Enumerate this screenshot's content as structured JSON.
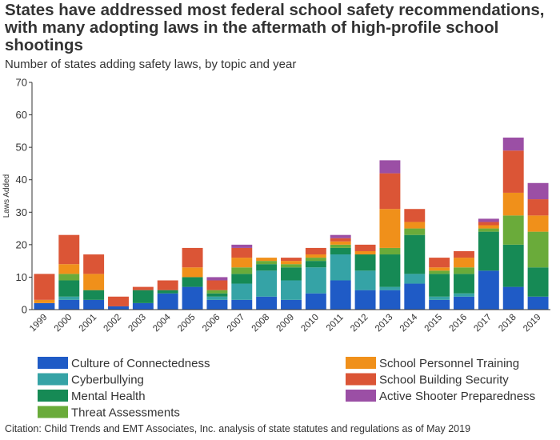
{
  "chart_data": {
    "type": "bar",
    "stacked": true,
    "title": "States have addressed most federal school safety recommendations, with many adopting laws in the aftermath of high-profile school shootings",
    "subtitle": "Number of states adding safety laws, by topic and year",
    "ylabel": "Laws Added",
    "xlabel": "",
    "ylim": [
      0,
      70
    ],
    "yticks": [
      0,
      10,
      20,
      30,
      40,
      50,
      60,
      70
    ],
    "grid": false,
    "legend_position": "bottom",
    "categories": [
      "1999",
      "2000",
      "2001",
      "2002",
      "2003",
      "2004",
      "2005",
      "2006",
      "2007",
      "2008",
      "2009",
      "2010",
      "2011",
      "2012",
      "2013",
      "2014",
      "2015",
      "2016",
      "2017",
      "2018",
      "2019"
    ],
    "series": [
      {
        "name": "Culture of Connectedness",
        "color": "#1f5bc6",
        "values": [
          2,
          3,
          3,
          1,
          2,
          5,
          7,
          3,
          3,
          4,
          3,
          5,
          9,
          6,
          6,
          8,
          3,
          4,
          12,
          7,
          4
        ]
      },
      {
        "name": "Cyberbullying",
        "color": "#35a3a6",
        "values": [
          0,
          1,
          0,
          0,
          0,
          0,
          0,
          1,
          5,
          8,
          6,
          8,
          8,
          6,
          1,
          3,
          1,
          1,
          0,
          0,
          0
        ]
      },
      {
        "name": "Mental Health",
        "color": "#168a55",
        "values": [
          0,
          5,
          3,
          0,
          4,
          1,
          3,
          1,
          3,
          2,
          4,
          2,
          2,
          5,
          10,
          12,
          7,
          6,
          12,
          13,
          9
        ]
      },
      {
        "name": "Threat Assessments",
        "color": "#6aab3a",
        "values": [
          0,
          2,
          0,
          0,
          0,
          0,
          0,
          1,
          2,
          1,
          1,
          1,
          1,
          0,
          2,
          2,
          1,
          2,
          1,
          9,
          11
        ]
      },
      {
        "name": "School Personnel Training",
        "color": "#f0901a",
        "values": [
          1,
          3,
          5,
          0,
          0,
          0,
          3,
          0,
          3,
          1,
          1,
          1,
          1,
          1,
          12,
          2,
          1,
          3,
          1,
          7,
          5
        ]
      },
      {
        "name": "School Building Security",
        "color": "#db5536",
        "values": [
          8,
          9,
          6,
          3,
          1,
          3,
          6,
          3,
          3,
          0,
          1,
          2,
          1,
          2,
          11,
          4,
          3,
          2,
          1,
          13,
          5
        ]
      },
      {
        "name": "Active Shooter Preparedness",
        "color": "#9b4fa5",
        "values": [
          0,
          0,
          0,
          0,
          0,
          0,
          0,
          1,
          1,
          0,
          0,
          0,
          1,
          0,
          4,
          0,
          0,
          0,
          1,
          4,
          5
        ]
      }
    ]
  },
  "citation": "Citation: Child Trends and EMT Associates, Inc. analysis of state statutes and regulations as of May 2019"
}
